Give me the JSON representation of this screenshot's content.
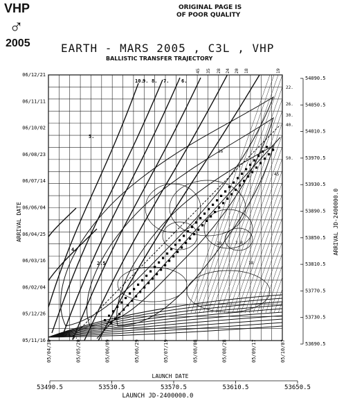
{
  "header": {
    "badge": "VHP",
    "symbol": "♂",
    "year": "2005",
    "note_line1": "ORIGINAL PAGE IS",
    "note_line2": "OF POOR QUALITY"
  },
  "chart_data": {
    "type": "contour",
    "title": "EARTH - MARS 2005 , C3L , VHP",
    "subtitle": "BALLISTIC TRANSFER TRAJECTORY",
    "xlabel": "LAUNCH DATE",
    "xlabel2": "LAUNCH JD-2400000.0",
    "ylabel": "ARRIVAL DATE",
    "ylabel2": "ARRIVAL JD-2400000.0",
    "x_jd_range": [
      53490.5,
      53650.5
    ],
    "y_jd_range": [
      53690.5,
      54090.5
    ],
    "x_date_ticks": [
      "05/04/30",
      "05/05/20",
      "05/06/09",
      "05/06/29",
      "05/07/19",
      "05/08/08",
      "05/08/28",
      "05/09/17",
      "05/10/07"
    ],
    "x_jd_ticks": [
      "53490.5",
      "53530.5",
      "53570.5",
      "53610.5",
      "53650.5"
    ],
    "y_date_ticks": [
      "05/11/16",
      "05/12/26",
      "06/02/04",
      "06/03/16",
      "06/04/25",
      "06/06/04",
      "06/07/14",
      "06/08/23",
      "06/10/02",
      "06/11/11",
      "06/12/21"
    ],
    "y_jd_ticks": [
      "53690.5",
      "53730.5",
      "53770.5",
      "53810.5",
      "53850.5",
      "53890.5",
      "53930.5",
      "53970.5",
      "54010.5",
      "54050.5",
      "54090.5"
    ],
    "top_labels": [
      "45",
      "35",
      "28",
      "24",
      "20",
      "18",
      "19"
    ],
    "right_labels": [
      "22.",
      "26.",
      "30.",
      "40.",
      "50.",
      "45"
    ],
    "c3_labels": [
      "10.",
      "9.",
      "8.",
      "7.",
      "6.",
      "5.",
      "4.",
      "3.",
      "2.5"
    ],
    "inner_labels": [
      "16",
      "20",
      "2.8",
      "18"
    ],
    "grid": true
  }
}
